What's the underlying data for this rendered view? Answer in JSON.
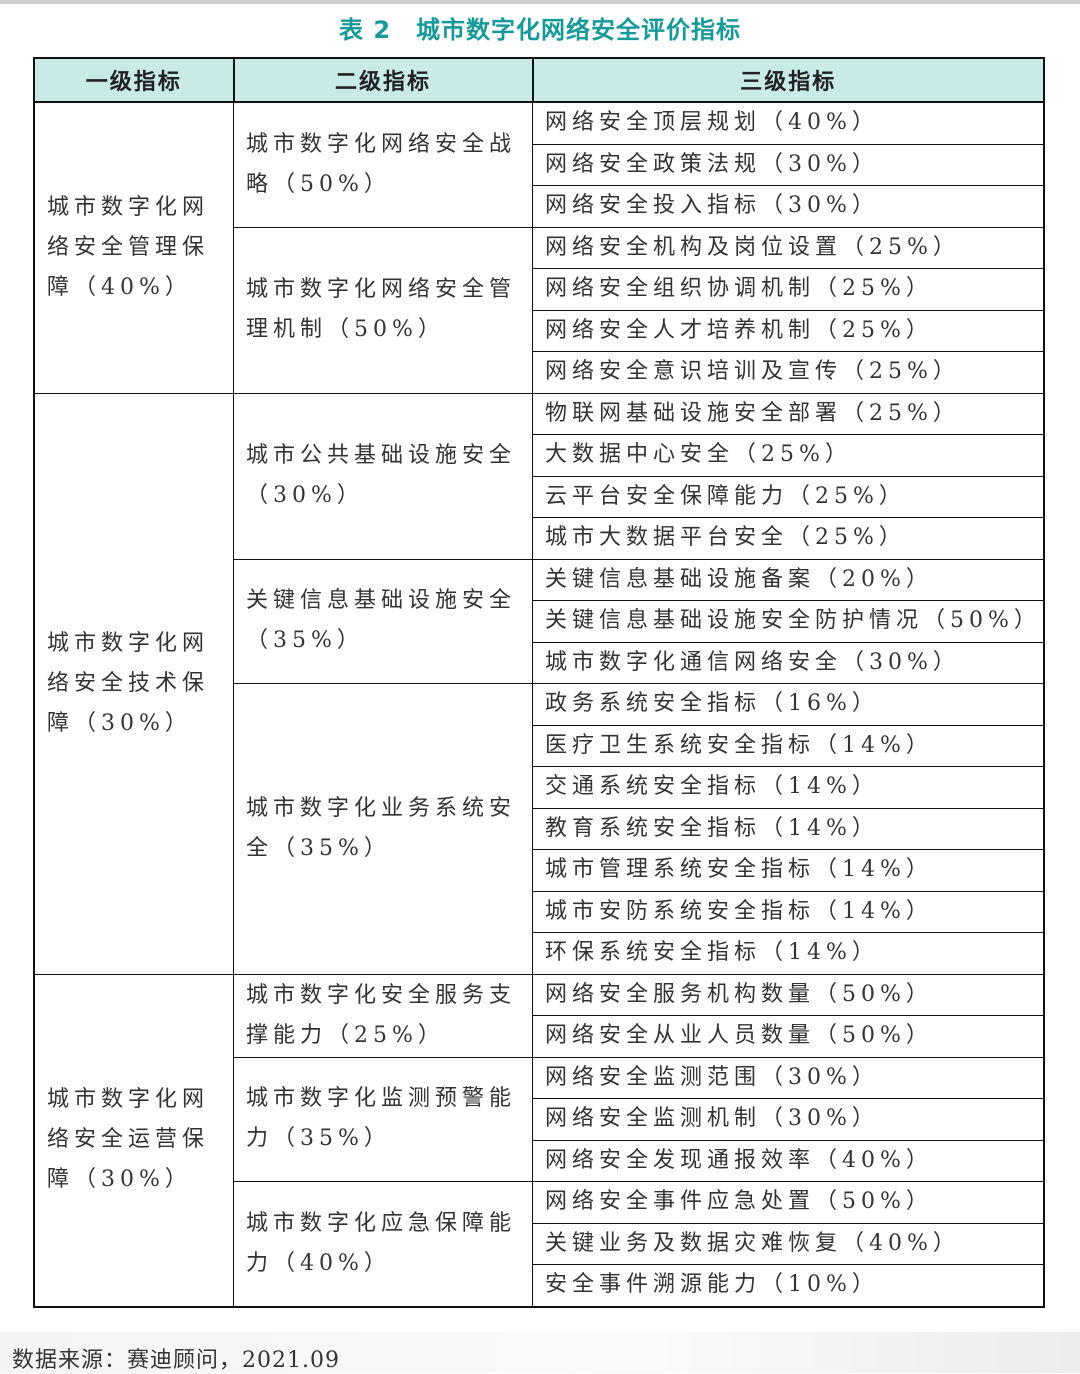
{
  "title": "表 2　城市数字化网络安全评价指标",
  "headers": [
    "一级指标",
    "二级指标",
    "三级指标"
  ],
  "groups": [
    {
      "level1": "城市数字化网络安全管理保障（40%）",
      "children": [
        {
          "level2": "城市数字化网络安全战略（50%）",
          "items": [
            "网络安全顶层规划（40%）",
            "网络安全政策法规（30%）",
            "网络安全投入指标（30%）"
          ]
        },
        {
          "level2": "城市数字化网络安全管理机制（50%）",
          "items": [
            "网络安全机构及岗位设置（25%）",
            "网络安全组织协调机制（25%）",
            "网络安全人才培养机制（25%）",
            "网络安全意识培训及宣传（25%）"
          ]
        }
      ]
    },
    {
      "level1": "城市数字化网络安全技术保障（30%）",
      "children": [
        {
          "level2": "城市公共基础设施安全（30%）",
          "items": [
            "物联网基础设施安全部署（25%）",
            "大数据中心安全（25%）",
            "云平台安全保障能力（25%）",
            "城市大数据平台安全（25%）"
          ]
        },
        {
          "level2": "关键信息基础设施安全（35%）",
          "items": [
            "关键信息基础设施备案（20%）",
            "关键信息基础设施安全防护情况（50%）",
            "城市数字化通信网络安全（30%）"
          ]
        },
        {
          "level2": "城市数字化业务系统安全（35%）",
          "items": [
            "政务系统安全指标（16%）",
            "医疗卫生系统安全指标（14%）",
            "交通系统安全指标（14%）",
            "教育系统安全指标（14%）",
            "城市管理系统安全指标（14%）",
            "城市安防系统安全指标（14%）",
            "环保系统安全指标（14%）"
          ]
        }
      ]
    },
    {
      "level1": "城市数字化网络安全运营保障（30%）",
      "children": [
        {
          "level2": "城市数字化安全服务支撑能力（25%）",
          "items": [
            "网络安全服务机构数量（50%）",
            "网络安全从业人员数量（50%）"
          ]
        },
        {
          "level2": "城市数字化监测预警能力（35%）",
          "items": [
            "网络安全监测范围（30%）",
            "网络安全监测机制（30%）",
            "网络安全发现通报效率（40%）"
          ]
        },
        {
          "level2": "城市数字化应急保障能力（40%）",
          "items": [
            "网络安全事件应急处置（50%）",
            "关键业务及数据灾难恢复（40%）",
            "安全事件溯源能力（10%）"
          ]
        }
      ]
    }
  ],
  "source": "数据来源：赛迪顾问，2021.09",
  "colors": {
    "title": "#17999a",
    "header_bg": "#c8ebe8"
  }
}
